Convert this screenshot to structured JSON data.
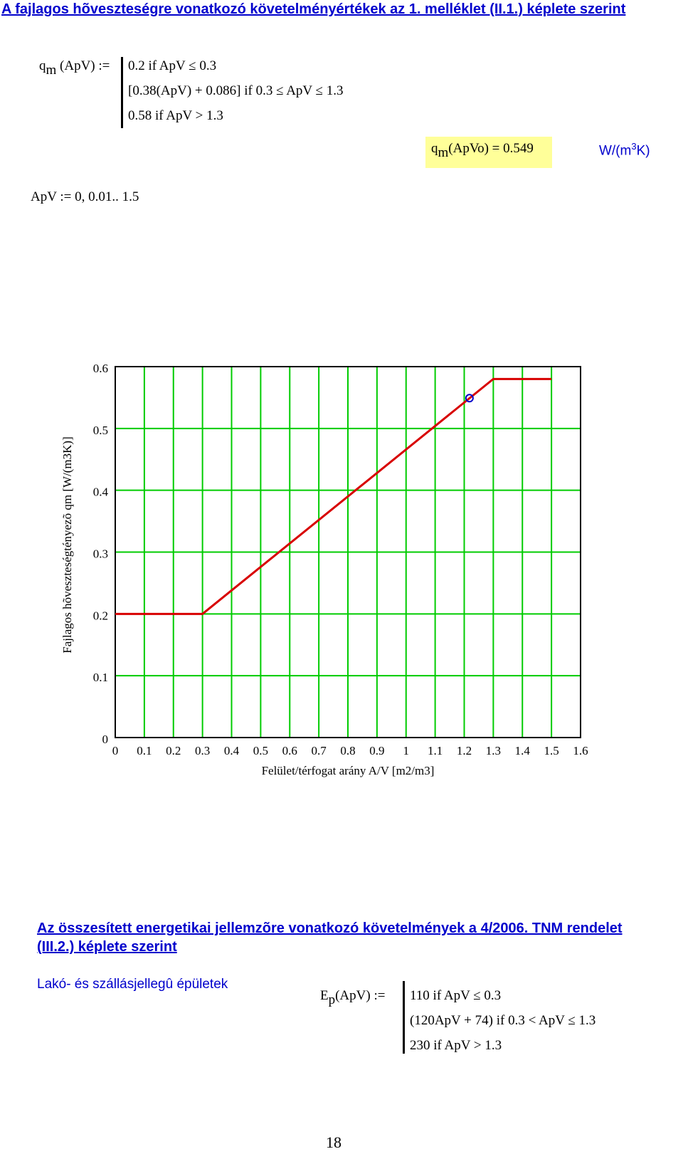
{
  "header": {
    "title": "A fajlagos hõveszteségre vonatkozó követelményértékek az 1. melléklet (II.1.) képlete szerint"
  },
  "qm_definition": {
    "func": "q",
    "sub": "m",
    "args": "(ApV) :=",
    "cases": [
      "0.2  if  ApV ≤ 0.3",
      "[0.38(ApV) + 0.086]  if  0.3 ≤ ApV ≤ 1.3",
      "0.58  if  ApV > 1.3"
    ]
  },
  "qm_result": {
    "func": "q",
    "sub": "m",
    "expr": "(ApVo) = 0.549",
    "unit": {
      "before": "W/(m",
      "sup": "3",
      "after": "K)"
    }
  },
  "range_definition": "ApV := 0, 0.01.. 1.5",
  "chart_data": {
    "type": "line",
    "x_label": "Felület/térfogat arány A/V [m2/m3]",
    "y_label": "Fajlagos hõveszteségtényezõ qm [W/(m3K)]",
    "xlim": [
      0,
      1.6
    ],
    "ylim": [
      0,
      0.6
    ],
    "xticks": [
      0,
      0.1,
      0.2,
      0.3,
      0.4,
      0.5,
      0.6,
      0.7,
      0.8,
      0.9,
      1,
      1.1,
      1.2,
      1.3,
      1.4,
      1.5,
      1.6
    ],
    "yticks": [
      0,
      0.1,
      0.2,
      0.3,
      0.4,
      0.5,
      0.6
    ],
    "grid": true,
    "grid_color": "#00cc00",
    "series": [
      {
        "color": "#d80000",
        "x": [
          0,
          0.3,
          1.3,
          1.5
        ],
        "values": [
          0.2,
          0.2,
          0.58,
          0.58
        ]
      },
      {
        "color": "#0000cc",
        "marker": "circle",
        "x": [
          1.218
        ],
        "values": [
          0.549
        ]
      }
    ]
  },
  "section2": {
    "heading": [
      "Az összesített energetikai jellemzõre vonatkozó követelmények a 4/2006. TNM rendelet",
      "(III.2.) képlete szerint"
    ],
    "subtitle": "Lakó- és szállásjellegû épületek"
  },
  "ep_definition": {
    "func": "E",
    "sub": "p",
    "args": "(ApV) :=",
    "cases": [
      "110  if  ApV ≤ 0.3",
      "(120ApV + 74)  if  0.3 < ApV ≤ 1.3",
      "230  if  ApV > 1.3"
    ]
  },
  "footer": {
    "page_number": "18"
  }
}
